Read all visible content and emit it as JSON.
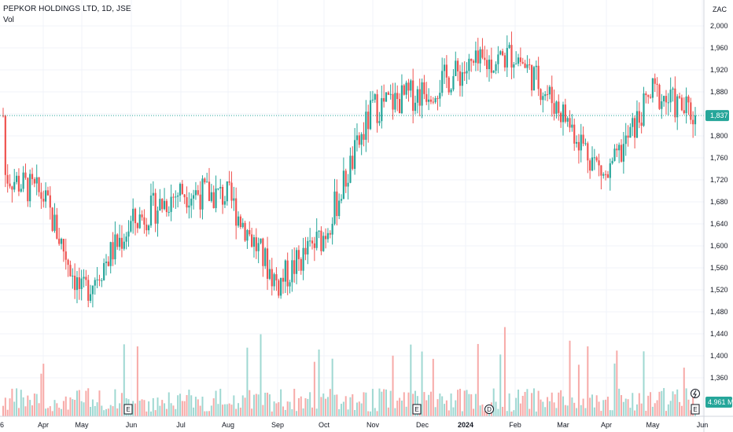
{
  "header": {
    "title": "PEPKOR HOLDINGS LTD, 1D, JSE",
    "volume_label": "Vol"
  },
  "currency": "ZAC",
  "colors": {
    "up": "#26a69a",
    "down": "#ef5350",
    "vol_up": "#9fd8d2",
    "vol_down": "#f7aaa8",
    "last_price": "#26a69a",
    "grid": "#f0f3fa"
  },
  "chart_data": {
    "type": "candlestick",
    "title": "PEPKOR HOLDINGS LTD, 1D, JSE",
    "ylabel": "ZAC",
    "ylim": [
      1320,
      2020
    ],
    "y_ticks": [
      "2,000",
      "1,960",
      "1,920",
      "1,880",
      "1,840",
      "1,800",
      "1,760",
      "1,720",
      "1,680",
      "1,640",
      "1,600",
      "1,560",
      "1,520",
      "1,480",
      "1,440",
      "1,400",
      "1,360"
    ],
    "x_ticks": [
      "Apr",
      "May",
      "Jun",
      "Jul",
      "Aug",
      "Sep",
      "Oct",
      "Nov",
      "Dec",
      "2024",
      "Feb",
      "Mar",
      "Apr",
      "May",
      "Jun"
    ],
    "last_price": 1837,
    "last_price_label": "1,837",
    "last_volume_label": "4.961 M",
    "events": [
      "E",
      "E",
      "D",
      "E"
    ],
    "price_series_monthly_approx": [
      {
        "month": "Mar",
        "close": 1730
      },
      {
        "month": "Apr",
        "close": 1690
      },
      {
        "month": "May",
        "close": 1510
      },
      {
        "month": "Jun",
        "close": 1640
      },
      {
        "month": "Jul",
        "close": 1700
      },
      {
        "month": "Aug",
        "close": 1690
      },
      {
        "month": "Sep",
        "close": 1530
      },
      {
        "month": "Oct",
        "close": 1620
      },
      {
        "month": "Nov",
        "close": 1850
      },
      {
        "month": "Dec",
        "close": 1880
      },
      {
        "month": "Jan",
        "close": 1920
      },
      {
        "month": "Feb",
        "close": 1950
      },
      {
        "month": "Mar",
        "close": 1840
      },
      {
        "month": "Apr",
        "close": 1720
      },
      {
        "month": "May",
        "close": 1880
      },
      {
        "month": "Jun",
        "close": 1837
      }
    ]
  }
}
